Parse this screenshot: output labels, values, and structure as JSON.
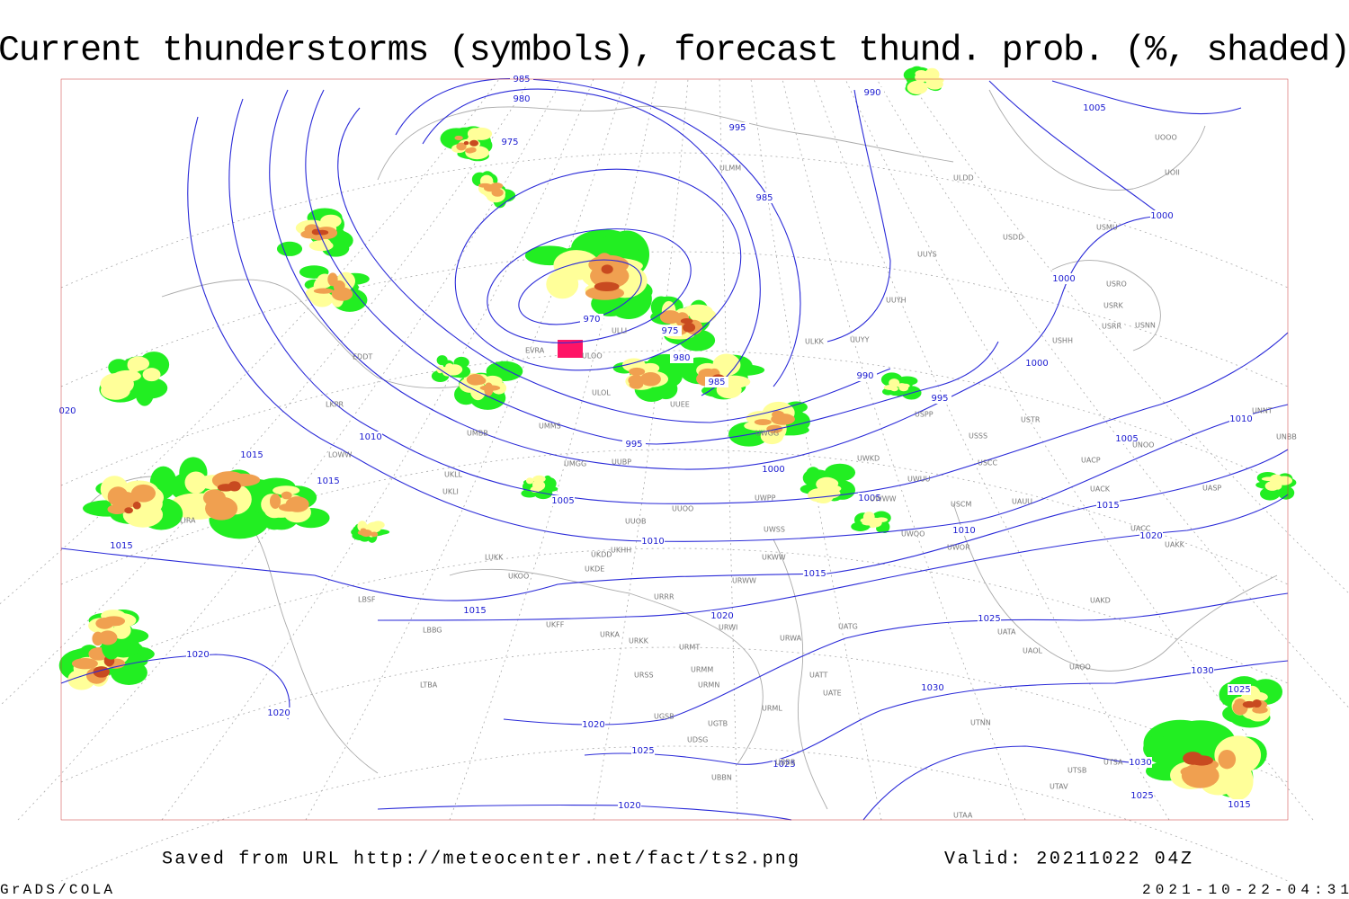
{
  "header": {
    "title": "Current thunderstorms (symbols), forecast thund. prob. (%, shaded)"
  },
  "footer": {
    "source": "Saved from URL http://meteocenter.net/fact/ts2.png",
    "valid": "Valid: 20211022 04Z",
    "software": "GrADS/COLA",
    "timestamp": "2021-10-22-04:31"
  },
  "map": {
    "contour_labels": [
      "985",
      "980",
      "975",
      "970",
      "975",
      "980",
      "985",
      "990",
      "995",
      "985",
      "990",
      "995",
      "1000",
      "1000",
      "1000",
      "1005",
      "1005",
      "1010",
      "1015",
      "1020",
      "1025",
      "1030",
      "1030",
      "1025",
      "1030",
      "1025",
      "1015",
      "995",
      "1000",
      "1005",
      "1010",
      "1015",
      "1020",
      "1020",
      "1025",
      "1025",
      "1020",
      "1005",
      "1010",
      "1015",
      "1015",
      "1015",
      "1015",
      "1010",
      "1020",
      "1020",
      "020"
    ],
    "stations": [
      "UUEE",
      "ULLI",
      "ULMM",
      "ULDD",
      "USDD",
      "UUYS",
      "UUYH",
      "UUYY",
      "ULKK",
      "USSS",
      "USTR",
      "USCC",
      "USCM",
      "UACC",
      "UAKK",
      "UAKD",
      "UATG",
      "UATA",
      "UAOL",
      "UAOO",
      "UTNN",
      "UTSA",
      "UTSB",
      "UTAV",
      "UTAA",
      "LIRA",
      "LOWW",
      "LKPR",
      "EDDT",
      "LBSF",
      "LBBG",
      "LTBA",
      "ULOL",
      "UMMS",
      "UMBB",
      "UMGG",
      "UUBP",
      "UUOO",
      "UUOB",
      "UKHH",
      "UKDD",
      "UKDE",
      "UKOO",
      "LUKK",
      "UKLL",
      "UKLI",
      "UKFF",
      "URKA",
      "URKK",
      "URMT",
      "URMM",
      "URSS",
      "URMN",
      "URWI",
      "URWA",
      "URML",
      "URRR",
      "URWW",
      "UATE",
      "UATT",
      "UGTB",
      "UGSB",
      "UBBB",
      "UBBN",
      "UDSG",
      "USPP",
      "UWGG",
      "UWKD",
      "UWWW",
      "UWPP",
      "UWSS",
      "UWOO",
      "UWOR",
      "UWUU",
      "UACP",
      "UACK",
      "UASP",
      "UAUU",
      "UNOO",
      "UNNT",
      "UNBB",
      "USRR",
      "USNN",
      "USHH",
      "USRK",
      "USRO",
      "USMU",
      "UOOO",
      "UOII",
      "EVRA",
      "ULOO",
      "UKWW"
    ]
  }
}
